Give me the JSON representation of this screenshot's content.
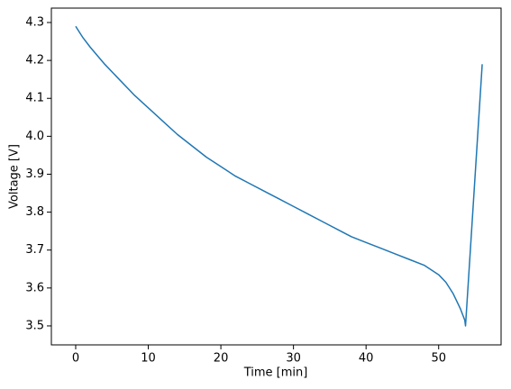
{
  "chart_data": {
    "type": "line",
    "xlabel": "Time [min]",
    "ylabel": "Voltage [V]",
    "x": [
      0,
      1,
      2,
      4,
      6,
      8,
      10,
      12,
      14,
      16,
      18,
      20,
      22,
      24,
      26,
      28,
      30,
      32,
      34,
      36,
      38,
      40,
      42,
      44,
      46,
      48,
      50,
      51,
      52,
      53,
      53.6,
      53.7,
      56
    ],
    "values": [
      4.29,
      4.26,
      4.235,
      4.19,
      4.15,
      4.11,
      4.075,
      4.04,
      4.005,
      3.975,
      3.945,
      3.92,
      3.895,
      3.875,
      3.855,
      3.835,
      3.815,
      3.795,
      3.775,
      3.755,
      3.735,
      3.72,
      3.705,
      3.69,
      3.675,
      3.66,
      3.635,
      3.615,
      3.585,
      3.545,
      3.515,
      3.5,
      4.19
    ],
    "color": "#1f77b4",
    "xlim": [
      -3.35,
      58.6
    ],
    "ylim": [
      3.45,
      4.338
    ],
    "xticks": [
      0,
      10,
      20,
      30,
      40,
      50
    ],
    "yticks": [
      3.5,
      3.6,
      3.7,
      3.8,
      3.9,
      {
        "value": 4.0,
        "label": "4.0"
      },
      4.1,
      4.2,
      4.3
    ]
  }
}
